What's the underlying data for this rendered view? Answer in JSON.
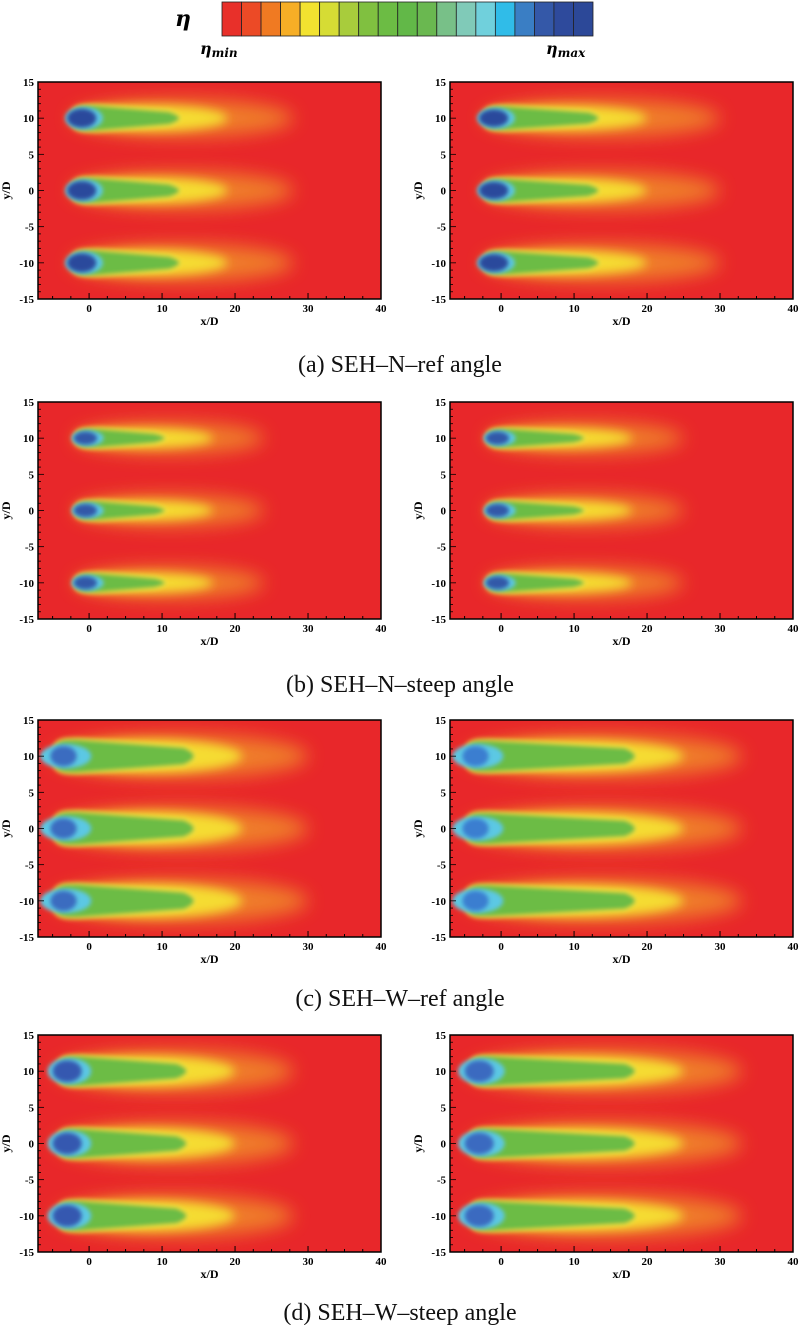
{
  "colorbar": {
    "symbol": "η",
    "min_label": "η",
    "min_sub": "min",
    "max_label": "η",
    "max_sub": "max",
    "colors": [
      "#e8302a",
      "#ec4a26",
      "#f07a22",
      "#f6ae26",
      "#f2e230",
      "#d6dc34",
      "#a8cc3c",
      "#80c040",
      "#6cbc44",
      "#62b848",
      "#6ab850",
      "#78c088",
      "#80cab8",
      "#70d0dc",
      "#30bce8",
      "#3a7ec4",
      "#3458a8",
      "#2e4a9c",
      "#2c4898"
    ]
  },
  "chart_data": [
    {
      "type": "heatmap",
      "panel": "a",
      "side": "left",
      "xlabel": "x/D",
      "ylabel": "y/D",
      "xlim": [
        -7,
        40
      ],
      "ylim": [
        -15,
        15
      ],
      "xticks": [
        0,
        10,
        20,
        30,
        40
      ],
      "yticks": [
        15,
        10,
        5,
        0,
        -5,
        -10,
        -15
      ],
      "jet_centers_y": [
        10,
        0,
        -10
      ]
    },
    {
      "type": "heatmap",
      "panel": "a",
      "side": "right",
      "xlabel": "x/D",
      "ylabel": "y/D",
      "xlim": [
        -7,
        40
      ],
      "ylim": [
        -15,
        15
      ],
      "xticks": [
        0,
        10,
        20,
        30,
        40
      ],
      "yticks": [
        15,
        10,
        5,
        0,
        -5,
        -10,
        -15
      ],
      "jet_centers_y": [
        10,
        0,
        -10
      ]
    },
    {
      "type": "heatmap",
      "panel": "b",
      "side": "left",
      "xlabel": "x/D",
      "ylabel": "y/D",
      "xlim": [
        -7,
        40
      ],
      "ylim": [
        -15,
        15
      ],
      "xticks": [
        0,
        10,
        20,
        30,
        40
      ],
      "yticks": [
        15,
        10,
        5,
        0,
        -5,
        -10,
        -15
      ],
      "jet_centers_y": [
        10,
        0,
        -10
      ]
    },
    {
      "type": "heatmap",
      "panel": "b",
      "side": "right",
      "xlabel": "x/D",
      "ylabel": "y/D",
      "xlim": [
        -7,
        40
      ],
      "ylim": [
        -15,
        15
      ],
      "xticks": [
        0,
        10,
        20,
        30,
        40
      ],
      "yticks": [
        15,
        10,
        5,
        0,
        -5,
        -10,
        -15
      ],
      "jet_centers_y": [
        10,
        0,
        -10
      ]
    },
    {
      "type": "heatmap",
      "panel": "c",
      "side": "left",
      "xlabel": "x/D",
      "ylabel": "y/D",
      "xlim": [
        -7,
        40
      ],
      "ylim": [
        -15,
        15
      ],
      "xticks": [
        0,
        10,
        20,
        30,
        40
      ],
      "yticks": [
        15,
        10,
        5,
        0,
        -5,
        -10,
        -15
      ],
      "jet_centers_y": [
        10,
        0,
        -10
      ]
    },
    {
      "type": "heatmap",
      "panel": "c",
      "side": "right",
      "xlabel": "x/D",
      "ylabel": "y/D",
      "xlim": [
        -7,
        40
      ],
      "ylim": [
        -15,
        15
      ],
      "xticks": [
        0,
        10,
        20,
        30,
        40
      ],
      "yticks": [
        15,
        10,
        5,
        0,
        -5,
        -10,
        -15
      ],
      "jet_centers_y": [
        10,
        0,
        -10
      ]
    },
    {
      "type": "heatmap",
      "panel": "d",
      "side": "left",
      "xlabel": "x/D",
      "ylabel": "y/D",
      "xlim": [
        -7,
        40
      ],
      "ylim": [
        -15,
        15
      ],
      "xticks": [
        0,
        10,
        20,
        30,
        40
      ],
      "yticks": [
        15,
        10,
        5,
        0,
        -5,
        -10,
        -15
      ],
      "jet_centers_y": [
        10,
        0,
        -10
      ]
    },
    {
      "type": "heatmap",
      "panel": "d",
      "side": "right",
      "xlabel": "x/D",
      "ylabel": "y/D",
      "xlim": [
        -7,
        40
      ],
      "ylim": [
        -15,
        15
      ],
      "xticks": [
        0,
        10,
        20,
        30,
        40
      ],
      "yticks": [
        15,
        10,
        5,
        0,
        -5,
        -10,
        -15
      ],
      "jet_centers_y": [
        10,
        0,
        -10
      ]
    }
  ],
  "captions": [
    "(a)  SEH–N–ref  angle",
    "(b)  SEH–N–steep  angle",
    "(c)  SEH–W–ref  angle",
    "(d)  SEH–W–steep  angle"
  ]
}
